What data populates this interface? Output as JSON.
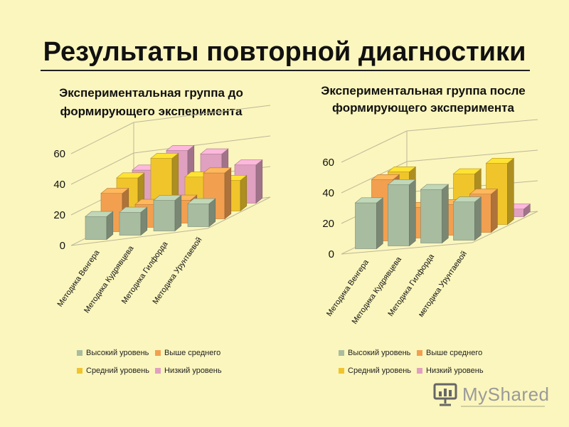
{
  "slide": {
    "title": "Результаты повторной диагностики",
    "brand": "MyShared"
  },
  "colors": {
    "high": "#a8bca0",
    "above": "#f2a050",
    "mid": "#f0c52c",
    "low": "#e0a0c0"
  },
  "legend": [
    {
      "key": "high",
      "label": "Высокий уровень"
    },
    {
      "key": "above",
      "label": "Выше среднего"
    },
    {
      "key": "mid",
      "label": "Средний уровень"
    },
    {
      "key": "low",
      "label": "Низкий уровень"
    }
  ],
  "chart_data": [
    {
      "type": "bar",
      "title_line1": "Экспериментальная группа до",
      "title_line2": "формирующего эксперимента",
      "categories": [
        "Методика Венгера",
        "Методика Кудрявцева",
        "Методика Гилфорда",
        "Методика Урунтаевой"
      ],
      "ylim": [
        0,
        60
      ],
      "yticks": [
        "0",
        "20",
        "40",
        "60"
      ],
      "series": [
        {
          "name": "Высокий уровень",
          "key": "high",
          "values": [
            15,
            15,
            20,
            15
          ]
        },
        {
          "name": "Выше среднего",
          "key": "above",
          "values": [
            25,
            15,
            15,
            30
          ]
        },
        {
          "name": "Средний уровень",
          "key": "mid",
          "values": [
            30,
            40,
            25,
            20
          ]
        },
        {
          "name": "Низкий уровень",
          "key": "low",
          "values": [
            30,
            40,
            35,
            25
          ]
        }
      ]
    },
    {
      "type": "bar",
      "title_line1": "Экспериментальная группа после",
      "title_line2": "формирующего эксперимента",
      "categories": [
        "Методика Венгера",
        "Методика Кудрявцева",
        "Методика Гилфорда",
        "методика Урунтаевой"
      ],
      "ylim": [
        0,
        60
      ],
      "yticks": [
        "0",
        "20",
        "40",
        "60"
      ],
      "series": [
        {
          "name": "Высокий уровень",
          "key": "high",
          "values": [
            30,
            40,
            35,
            25
          ]
        },
        {
          "name": "Выше среднего",
          "key": "above",
          "values": [
            40,
            20,
            20,
            25
          ]
        },
        {
          "name": "Средний уровень",
          "key": "mid",
          "values": [
            40,
            20,
            35,
            40
          ]
        },
        {
          "name": "Низкий уровень",
          "key": "low",
          "values": [
            0,
            5,
            0,
            5
          ]
        }
      ]
    }
  ]
}
